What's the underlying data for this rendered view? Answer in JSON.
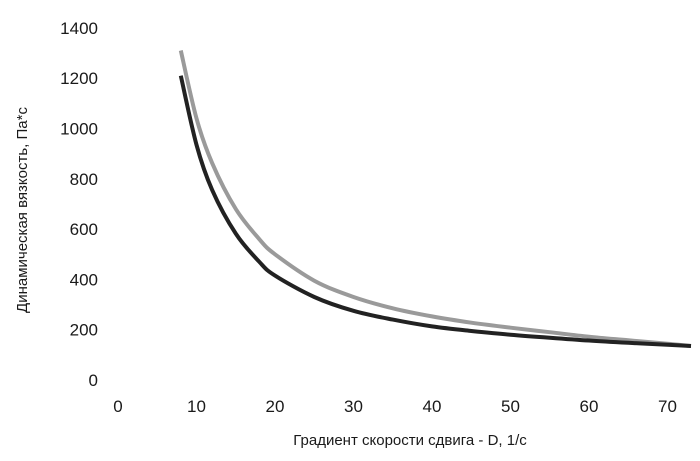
{
  "chart_data": {
    "type": "line",
    "title": "",
    "xlabel": "Градиент скорости сдвига - D, 1/с",
    "ylabel": "Динамическая вязкость, Па*с",
    "xlim": [
      0,
      73
    ],
    "ylim": [
      0,
      1400
    ],
    "xticks": [
      "0",
      "10",
      "20",
      "30",
      "40",
      "50",
      "60",
      "70"
    ],
    "yticks": [
      "0",
      "200",
      "400",
      "600",
      "800",
      "1000",
      "1200",
      "1400"
    ],
    "grid": false,
    "legend": "none",
    "series": [
      {
        "color": "#9a9a9a",
        "x": [
          8,
          10,
          12,
          15,
          18,
          20,
          25,
          30,
          35,
          40,
          45,
          50,
          55,
          60,
          65,
          70,
          73
        ],
        "y": [
          1310,
          1040,
          862,
          680,
          560,
          500,
          395,
          330,
          285,
          253,
          228,
          208,
          190,
          172,
          158,
          144,
          135
        ]
      },
      {
        "color": "#222222",
        "x": [
          8,
          10,
          12,
          15,
          18,
          20,
          25,
          30,
          35,
          40,
          45,
          50,
          55,
          60,
          65,
          70,
          73
        ],
        "y": [
          1210,
          935,
          755,
          582,
          470,
          415,
          330,
          275,
          240,
          213,
          195,
          180,
          168,
          157,
          148,
          140,
          135
        ]
      }
    ]
  }
}
